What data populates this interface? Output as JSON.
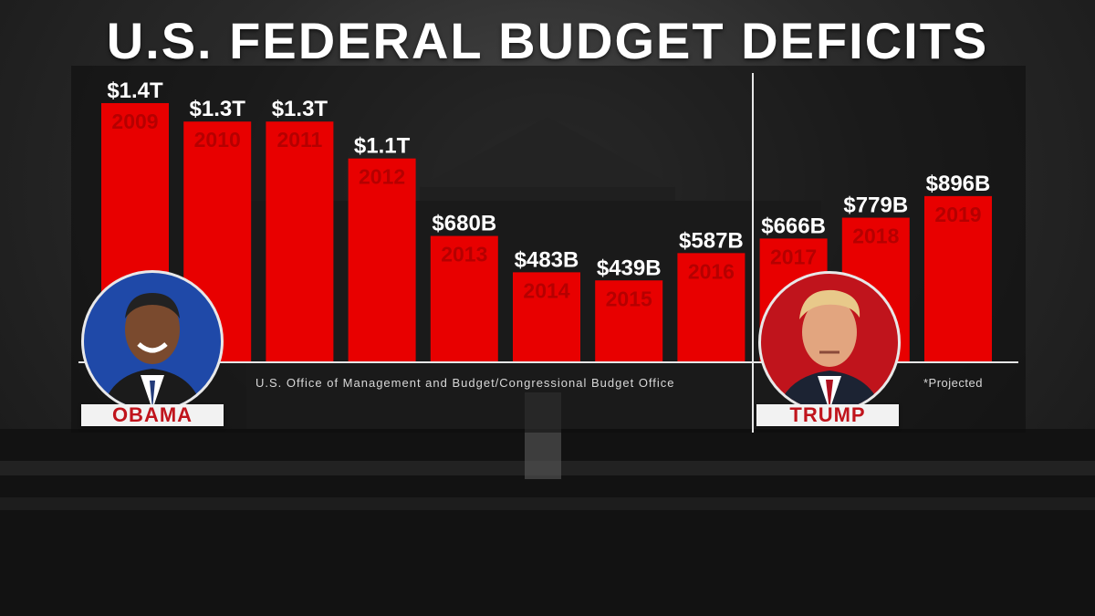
{
  "title": "U.S. FEDERAL BUDGET DEFICITS",
  "source_note": "U.S. Office of Management and Budget/Congressional Budget Office",
  "projected_note": "*Projected",
  "presidents": [
    {
      "name": "OBAMA",
      "years": [
        "2009",
        "2010",
        "2011",
        "2012",
        "2013",
        "2014",
        "2015",
        "2016"
      ]
    },
    {
      "name": "TRUMP",
      "years": [
        "2017",
        "2018",
        "2019"
      ]
    }
  ],
  "colors": {
    "bar": "#e80000",
    "year_label": "#b50000",
    "value_label": "#ffffff",
    "nameplate_text": "#c0141c"
  },
  "chart_data": {
    "type": "bar",
    "title": "U.S. FEDERAL BUDGET DEFICITS",
    "xlabel": "",
    "ylabel": "",
    "categories": [
      "2009",
      "2010",
      "2011",
      "2012",
      "2013",
      "2014",
      "2015",
      "2016",
      "2017",
      "2018",
      "2019"
    ],
    "values": [
      1400,
      1300,
      1300,
      1100,
      680,
      483,
      439,
      587,
      666,
      779,
      896
    ],
    "unit": "billions of dollars",
    "labels": [
      "$1.4T",
      "$1.3T",
      "$1.3T",
      "$1.1T",
      "$680B",
      "$483B",
      "$439B",
      "$587B",
      "$666B",
      "$779B",
      "$896B"
    ],
    "ylim": [
      0,
      1400
    ],
    "grid": false,
    "legend": "none",
    "projected": [
      "2019"
    ]
  }
}
